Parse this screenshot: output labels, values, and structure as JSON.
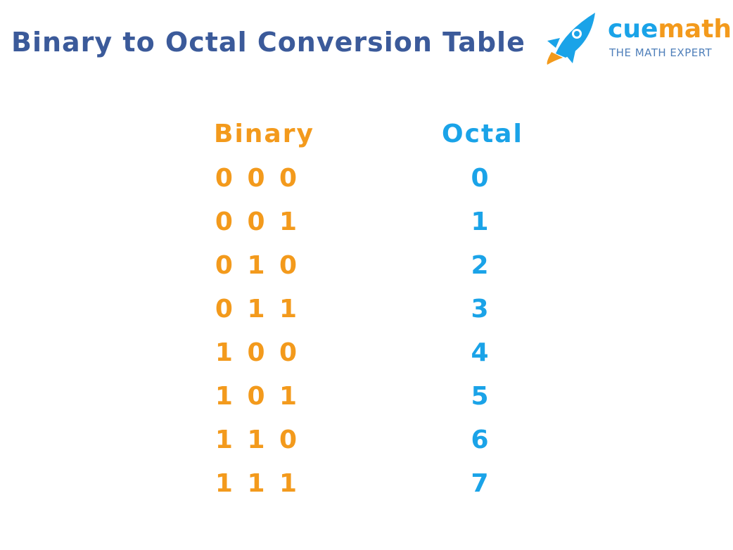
{
  "title": "Binary to Octal Conversion Table",
  "logo": {
    "brand_part1": "cue",
    "brand_part2": "math",
    "tagline": "THE MATH EXPERT",
    "icon": "rocket-icon",
    "colors": {
      "blue": "#1aa3e8",
      "orange": "#f39a1c"
    }
  },
  "table": {
    "headers": {
      "binary": "Binary",
      "octal": "Octal"
    },
    "rows": [
      {
        "binary": "0 0 0",
        "octal": "0"
      },
      {
        "binary": "0 0 1",
        "octal": "1"
      },
      {
        "binary": "0 1 0",
        "octal": "2"
      },
      {
        "binary": "0 1 1",
        "octal": "3"
      },
      {
        "binary": "1 0 0",
        "octal": "4"
      },
      {
        "binary": "1 0 1",
        "octal": "5"
      },
      {
        "binary": "1 1 0",
        "octal": "6"
      },
      {
        "binary": "1 1 1",
        "octal": "7"
      }
    ]
  },
  "colors": {
    "title": "#3b5a9a",
    "binary": "#f39a1c",
    "octal": "#1aa3e8"
  }
}
